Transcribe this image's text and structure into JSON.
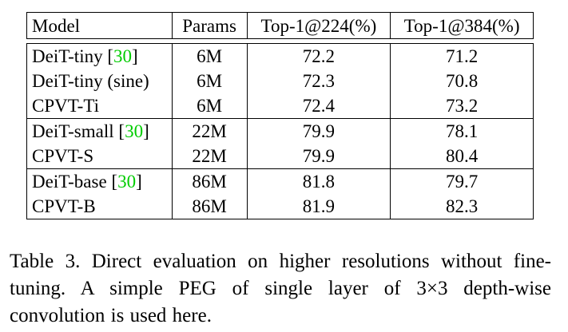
{
  "table": {
    "headers": [
      "Model",
      "Params",
      "Top-1@224(%)",
      "Top-1@384(%)"
    ],
    "groups": [
      {
        "rows": [
          {
            "model": "DeiT-tiny",
            "cite": "30",
            "params": "6M",
            "top1_224": "72.2",
            "top1_384": "71.2"
          },
          {
            "model": "DeiT-tiny (sine)",
            "cite": "",
            "params": "6M",
            "top1_224": "72.3",
            "top1_384": "70.8"
          },
          {
            "model": "CPVT-Ti",
            "cite": "",
            "params": "6M",
            "top1_224": "72.4",
            "top1_384": "73.2"
          }
        ]
      },
      {
        "rows": [
          {
            "model": "DeiT-small",
            "cite": "30",
            "params": "22M",
            "top1_224": "79.9",
            "top1_384": "78.1"
          },
          {
            "model": "CPVT-S",
            "cite": "",
            "params": "22M",
            "top1_224": "79.9",
            "top1_384": "80.4"
          }
        ]
      },
      {
        "rows": [
          {
            "model": "DeiT-base",
            "cite": "30",
            "params": "86M",
            "top1_224": "81.8",
            "top1_384": "79.7"
          },
          {
            "model": "CPVT-B",
            "cite": "",
            "params": "86M",
            "top1_224": "81.9",
            "top1_384": "82.3"
          }
        ]
      }
    ]
  },
  "caption": "Table 3.  Direct evaluation on higher resolutions without fine-tuning.  A simple PEG of single layer of 3×3 depth-wise convolution is used here."
}
